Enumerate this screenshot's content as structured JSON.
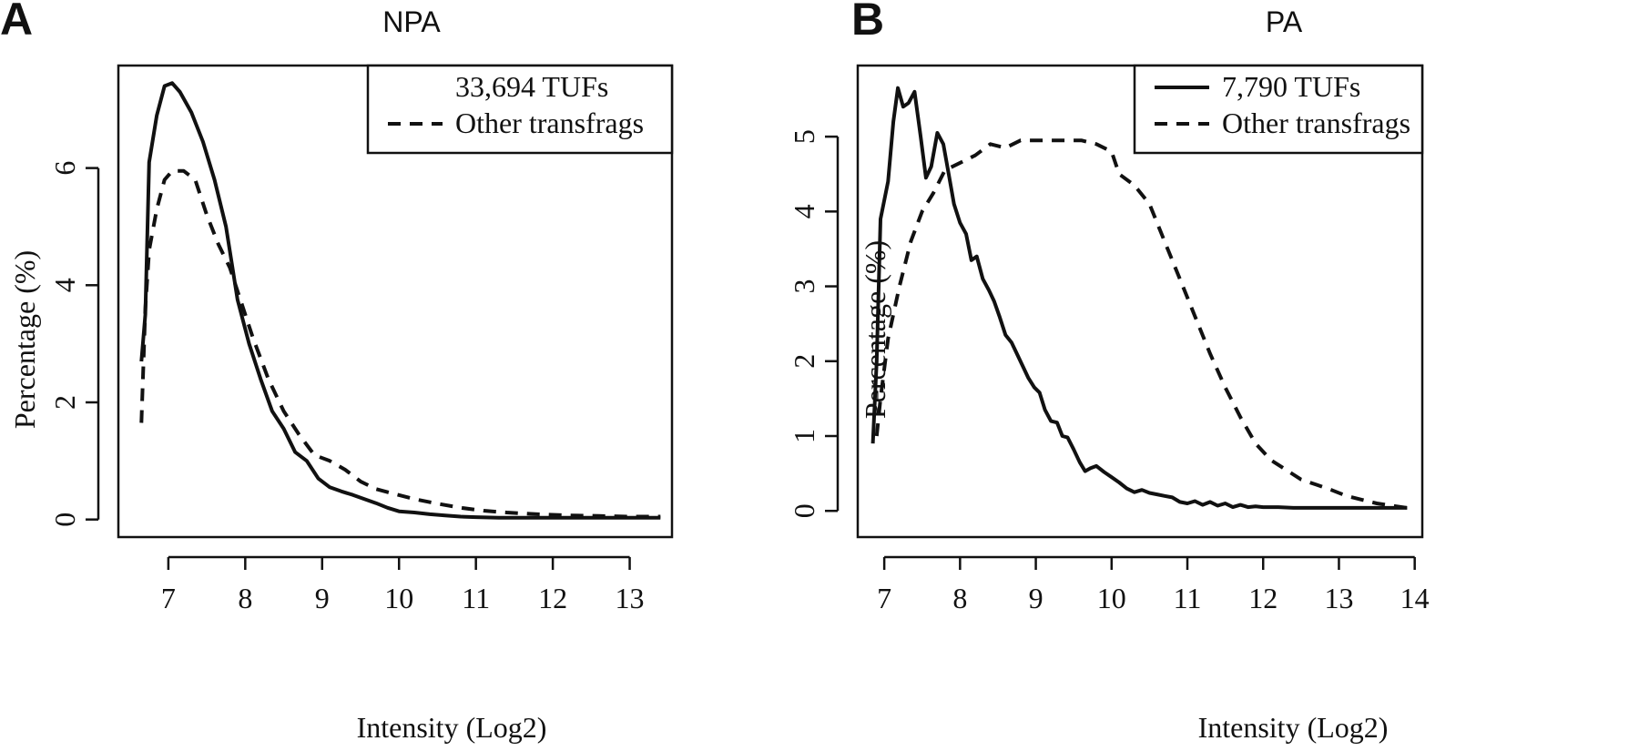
{
  "chart_data": [
    {
      "type": "line",
      "panel_letter": "A",
      "title": "NPA",
      "xlabel": "Intensity (Log2)",
      "ylabel": "Percentage (%)",
      "xlim": [
        6.35,
        13.55
      ],
      "ylim": [
        -0.3,
        7.75
      ],
      "xticks": [
        7,
        8,
        9,
        10,
        11,
        12,
        13
      ],
      "yticks": [
        0,
        2,
        4,
        6
      ],
      "legend_position": "top-right",
      "series": [
        {
          "name": "33,694 TUFs",
          "style": "solid",
          "x": [
            6.65,
            6.7,
            6.75,
            6.85,
            6.95,
            7.05,
            7.15,
            7.3,
            7.45,
            7.6,
            7.75,
            7.9,
            8.05,
            8.2,
            8.35,
            8.5,
            8.65,
            8.8,
            8.95,
            9.1,
            9.25,
            9.4,
            9.55,
            9.7,
            9.85,
            10.0,
            10.2,
            10.4,
            10.6,
            10.8,
            11.0,
            11.3,
            11.6,
            12.0,
            12.5,
            13.0,
            13.4
          ],
          "values": [
            2.7,
            3.5,
            6.1,
            6.9,
            7.4,
            7.45,
            7.3,
            6.95,
            6.45,
            5.8,
            5.0,
            3.75,
            3.0,
            2.4,
            1.85,
            1.55,
            1.15,
            1.0,
            0.7,
            0.55,
            0.48,
            0.42,
            0.35,
            0.28,
            0.2,
            0.14,
            0.12,
            0.09,
            0.07,
            0.05,
            0.04,
            0.03,
            0.03,
            0.03,
            0.03,
            0.03,
            0.03
          ]
        },
        {
          "name": "Other transfrags",
          "style": "dashed",
          "x": [
            6.65,
            6.7,
            6.75,
            6.85,
            6.95,
            7.05,
            7.2,
            7.35,
            7.5,
            7.65,
            7.8,
            7.95,
            8.1,
            8.3,
            8.5,
            8.7,
            8.9,
            9.1,
            9.3,
            9.5,
            9.7,
            9.9,
            10.2,
            10.5,
            10.8,
            11.1,
            11.4,
            11.8,
            12.2,
            12.6,
            13.0,
            13.4
          ],
          "values": [
            1.65,
            3.6,
            4.6,
            5.3,
            5.8,
            5.95,
            5.95,
            5.8,
            5.2,
            4.7,
            4.3,
            3.7,
            3.1,
            2.4,
            1.85,
            1.45,
            1.1,
            1.0,
            0.85,
            0.65,
            0.52,
            0.45,
            0.35,
            0.27,
            0.2,
            0.15,
            0.12,
            0.09,
            0.07,
            0.06,
            0.05,
            0.05
          ]
        }
      ]
    },
    {
      "type": "line",
      "panel_letter": "B",
      "title": "PA",
      "xlabel": "Intensity (Log2)",
      "ylabel": "Percentage (%)",
      "xlim": [
        6.65,
        14.1
      ],
      "ylim": [
        -0.35,
        5.95
      ],
      "xticks": [
        7,
        8,
        9,
        10,
        11,
        12,
        13,
        14
      ],
      "yticks": [
        0,
        1,
        2,
        3,
        4,
        5
      ],
      "legend_position": "top-right",
      "series": [
        {
          "name": "7,790 TUFs",
          "style": "solid",
          "x": [
            6.85,
            6.9,
            6.95,
            7.05,
            7.12,
            7.18,
            7.25,
            7.32,
            7.4,
            7.48,
            7.55,
            7.62,
            7.7,
            7.78,
            7.85,
            7.92,
            8.0,
            8.08,
            8.15,
            8.22,
            8.3,
            8.38,
            8.45,
            8.52,
            8.6,
            8.68,
            8.75,
            8.82,
            8.9,
            8.98,
            9.05,
            9.12,
            9.2,
            9.28,
            9.35,
            9.42,
            9.5,
            9.58,
            9.65,
            9.72,
            9.8,
            9.9,
            10.0,
            10.1,
            10.2,
            10.3,
            10.4,
            10.5,
            10.6,
            10.7,
            10.8,
            10.9,
            11.0,
            11.1,
            11.2,
            11.3,
            11.4,
            11.5,
            11.6,
            11.7,
            11.8,
            11.9,
            12.0,
            12.2,
            12.4,
            12.6,
            12.8,
            13.0,
            13.3,
            13.6,
            13.9
          ],
          "values": [
            0.9,
            2.0,
            3.9,
            4.4,
            5.2,
            5.65,
            5.4,
            5.45,
            5.6,
            5.0,
            4.45,
            4.6,
            5.05,
            4.9,
            4.5,
            4.1,
            3.85,
            3.7,
            3.35,
            3.4,
            3.1,
            2.95,
            2.8,
            2.6,
            2.35,
            2.25,
            2.1,
            1.95,
            1.78,
            1.65,
            1.58,
            1.35,
            1.2,
            1.18,
            1.0,
            0.98,
            0.82,
            0.65,
            0.53,
            0.57,
            0.6,
            0.52,
            0.45,
            0.38,
            0.3,
            0.25,
            0.28,
            0.24,
            0.22,
            0.2,
            0.18,
            0.12,
            0.1,
            0.13,
            0.08,
            0.12,
            0.07,
            0.1,
            0.05,
            0.08,
            0.05,
            0.06,
            0.05,
            0.05,
            0.04,
            0.04,
            0.04,
            0.04,
            0.04,
            0.04,
            0.04
          ]
        },
        {
          "name": "Other transfrags",
          "style": "dashed",
          "x": [
            6.9,
            6.95,
            7.05,
            7.2,
            7.35,
            7.5,
            7.65,
            7.8,
            8.0,
            8.2,
            8.4,
            8.6,
            8.8,
            9.0,
            9.2,
            9.4,
            9.6,
            9.8,
            10.0,
            10.1,
            10.3,
            10.5,
            10.7,
            10.9,
            11.1,
            11.3,
            11.5,
            11.7,
            11.9,
            12.1,
            12.3,
            12.5,
            12.7,
            12.9,
            13.1,
            13.3,
            13.5,
            13.7,
            13.9
          ],
          "values": [
            1.0,
            1.5,
            2.3,
            3.0,
            3.6,
            4.0,
            4.25,
            4.55,
            4.65,
            4.75,
            4.9,
            4.85,
            4.95,
            4.95,
            4.95,
            4.95,
            4.95,
            4.9,
            4.8,
            4.5,
            4.35,
            4.1,
            3.6,
            3.1,
            2.6,
            2.1,
            1.65,
            1.25,
            0.9,
            0.68,
            0.55,
            0.42,
            0.35,
            0.28,
            0.2,
            0.15,
            0.1,
            0.07,
            0.04
          ]
        }
      ]
    }
  ]
}
